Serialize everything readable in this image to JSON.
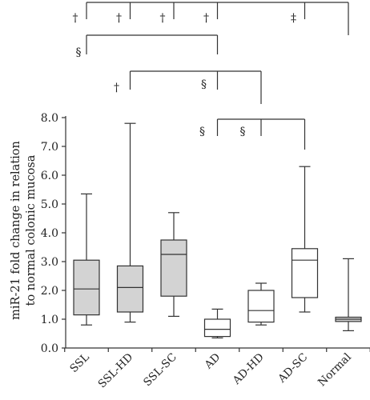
{
  "chart_data": {
    "type": "box",
    "ylabel_line1": "miR-21 fold change in relation",
    "ylabel_line2": "to normal colonic mucosa",
    "ylim": [
      0,
      8
    ],
    "y_ticks": [
      "0.0",
      "1.0",
      "2.0",
      "3.0",
      "4.0",
      "5.0",
      "6.0",
      "7.0",
      "8.0"
    ],
    "categories": [
      "SSL",
      "SSL-HD",
      "SSL-SC",
      "AD",
      "AD-HD",
      "AD-SC",
      "Normal"
    ],
    "fill_colors": [
      "#d3d3d3",
      "#d3d3d3",
      "#d3d3d3",
      "#ffffff",
      "#ffffff",
      "#ffffff",
      "#d3d3d3"
    ],
    "boxes": [
      {
        "category": "SSL",
        "min": 0.8,
        "q1": 1.15,
        "median": 2.05,
        "q3": 3.05,
        "max": 5.35
      },
      {
        "category": "SSL-HD",
        "min": 0.9,
        "q1": 1.25,
        "median": 2.1,
        "q3": 2.85,
        "max": 7.8
      },
      {
        "category": "SSL-SC",
        "min": 1.1,
        "q1": 1.8,
        "median": 3.25,
        "q3": 3.75,
        "max": 4.7
      },
      {
        "category": "AD",
        "min": 0.35,
        "q1": 0.4,
        "median": 0.65,
        "q3": 1.0,
        "max": 1.35
      },
      {
        "category": "AD-HD",
        "min": 0.8,
        "q1": 0.9,
        "median": 1.3,
        "q3": 2.0,
        "max": 2.25
      },
      {
        "category": "AD-SC",
        "min": 1.25,
        "q1": 1.75,
        "median": 3.05,
        "q3": 3.45,
        "max": 6.3
      },
      {
        "category": "Normal",
        "min": 0.6,
        "q1": 0.92,
        "median": 1.0,
        "q3": 1.07,
        "max": 3.1
      }
    ],
    "significance": [
      {
        "symbol": "†",
        "from": "SSL",
        "to": "Normal"
      },
      {
        "symbol": "†",
        "from": "SSL-HD",
        "to": "Normal"
      },
      {
        "symbol": "†",
        "from": "SSL-SC",
        "to": "Normal"
      },
      {
        "symbol": "†",
        "from": "AD",
        "to": "Normal"
      },
      {
        "symbol": "‡",
        "from": "AD-SC",
        "to": "Normal"
      },
      {
        "symbol": "§",
        "from": "SSL",
        "to": "AD"
      },
      {
        "symbol": "†",
        "from": "SSL-HD",
        "to": "AD-HD"
      },
      {
        "symbol": "§",
        "from": "AD",
        "to": "AD-HD"
      },
      {
        "symbol": "§",
        "from": "AD",
        "to": "AD-SC"
      },
      {
        "symbol": "§",
        "from": "AD-HD",
        "to": "AD-SC"
      }
    ]
  }
}
